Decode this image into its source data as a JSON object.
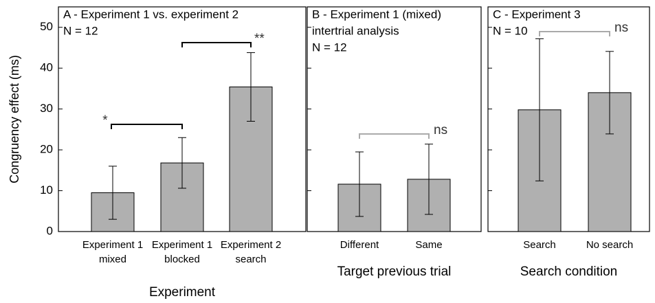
{
  "chart_data": [
    {
      "type": "bar",
      "title": [
        "A - Experiment 1 vs. experiment 2",
        "N = 12"
      ],
      "ylabel": "Congruency effect (ms)",
      "xlabel": "Experiment",
      "categories": [
        [
          "Experiment 1",
          "mixed"
        ],
        [
          "Experiment 1",
          "blocked"
        ],
        [
          "Experiment 2",
          "search"
        ]
      ],
      "values": [
        9.5,
        16.8,
        35.4
      ],
      "errors": [
        6.5,
        6.2,
        8.4
      ],
      "color": "#b0b0b0",
      "ylim": [
        0,
        55
      ],
      "yticks": [
        0,
        10,
        20,
        30,
        40,
        50
      ],
      "ytick_labels": true,
      "annotations": [
        {
          "text": "*",
          "color": "#000000"
        },
        {
          "text": "**",
          "color": "#000000"
        }
      ]
    },
    {
      "type": "bar",
      "title": [
        "B - Experiment 1 (mixed)",
        "intertrial analysis",
        "N = 12"
      ],
      "xlabel": "Target previous trial",
      "categories": [
        [
          "Different"
        ],
        [
          "Same"
        ]
      ],
      "values": [
        11.6,
        12.8
      ],
      "errors": [
        7.9,
        8.6
      ],
      "color": "#b0b0b0",
      "ylim": [
        0,
        55
      ],
      "yticks": [
        10,
        20,
        30,
        40,
        50
      ],
      "ytick_labels": false,
      "annotations": [
        {
          "text": "ns",
          "color": "#aaaaaa"
        }
      ]
    },
    {
      "type": "bar",
      "title": [
        "C - Experiment 3",
        "N = 10"
      ],
      "xlabel": "Search condition",
      "categories": [
        [
          "Search"
        ],
        [
          "No search"
        ]
      ],
      "values": [
        29.8,
        34.0
      ],
      "errors": [
        17.4,
        10.1
      ],
      "color": "#b0b0b0",
      "ylim": [
        0,
        55
      ],
      "yticks": [
        10,
        20,
        30,
        40,
        50
      ],
      "ytick_labels": false,
      "annotations": [
        {
          "text": "ns",
          "color": "#aaaaaa"
        }
      ]
    }
  ]
}
